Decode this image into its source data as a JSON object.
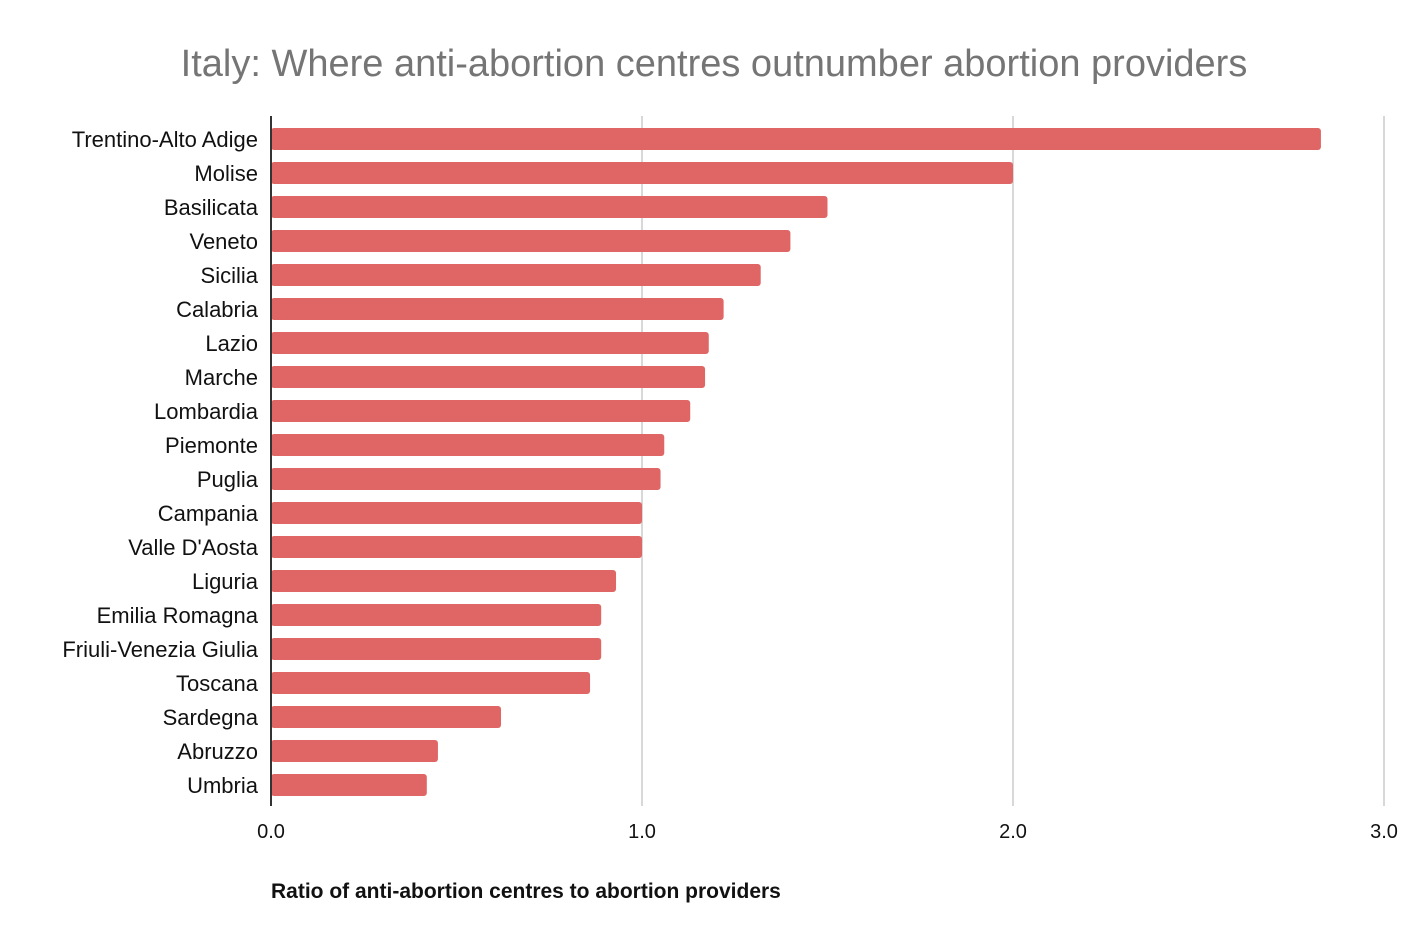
{
  "chart_data": {
    "type": "bar",
    "orientation": "horizontal",
    "title": "Italy: Where anti-abortion centres outnumber abortion providers",
    "xlabel": "Ratio of anti-abortion centres to abortion providers",
    "ylabel": "",
    "xlim": [
      0,
      3
    ],
    "ticks": [
      0,
      1,
      2,
      3
    ],
    "tick_labels": [
      "0.0",
      "1.0",
      "2.0",
      "3.0"
    ],
    "grid": true,
    "color": "#e06666",
    "categories": [
      "Trentino-Alto Adige",
      "Molise",
      "Basilicata",
      "Veneto",
      "Sicilia",
      "Calabria",
      "Lazio",
      "Marche",
      "Lombardia",
      "Piemonte",
      "Puglia",
      "Campania",
      "Valle D'Aosta",
      "Liguria",
      "Emilia Romagna",
      "Friuli-Venezia Giulia",
      "Toscana",
      "Sardegna",
      "Abruzzo",
      "Umbria"
    ],
    "values": [
      2.83,
      2.0,
      1.5,
      1.4,
      1.32,
      1.22,
      1.18,
      1.17,
      1.13,
      1.06,
      1.05,
      1.0,
      1.0,
      0.93,
      0.89,
      0.89,
      0.86,
      0.62,
      0.45,
      0.42
    ]
  }
}
